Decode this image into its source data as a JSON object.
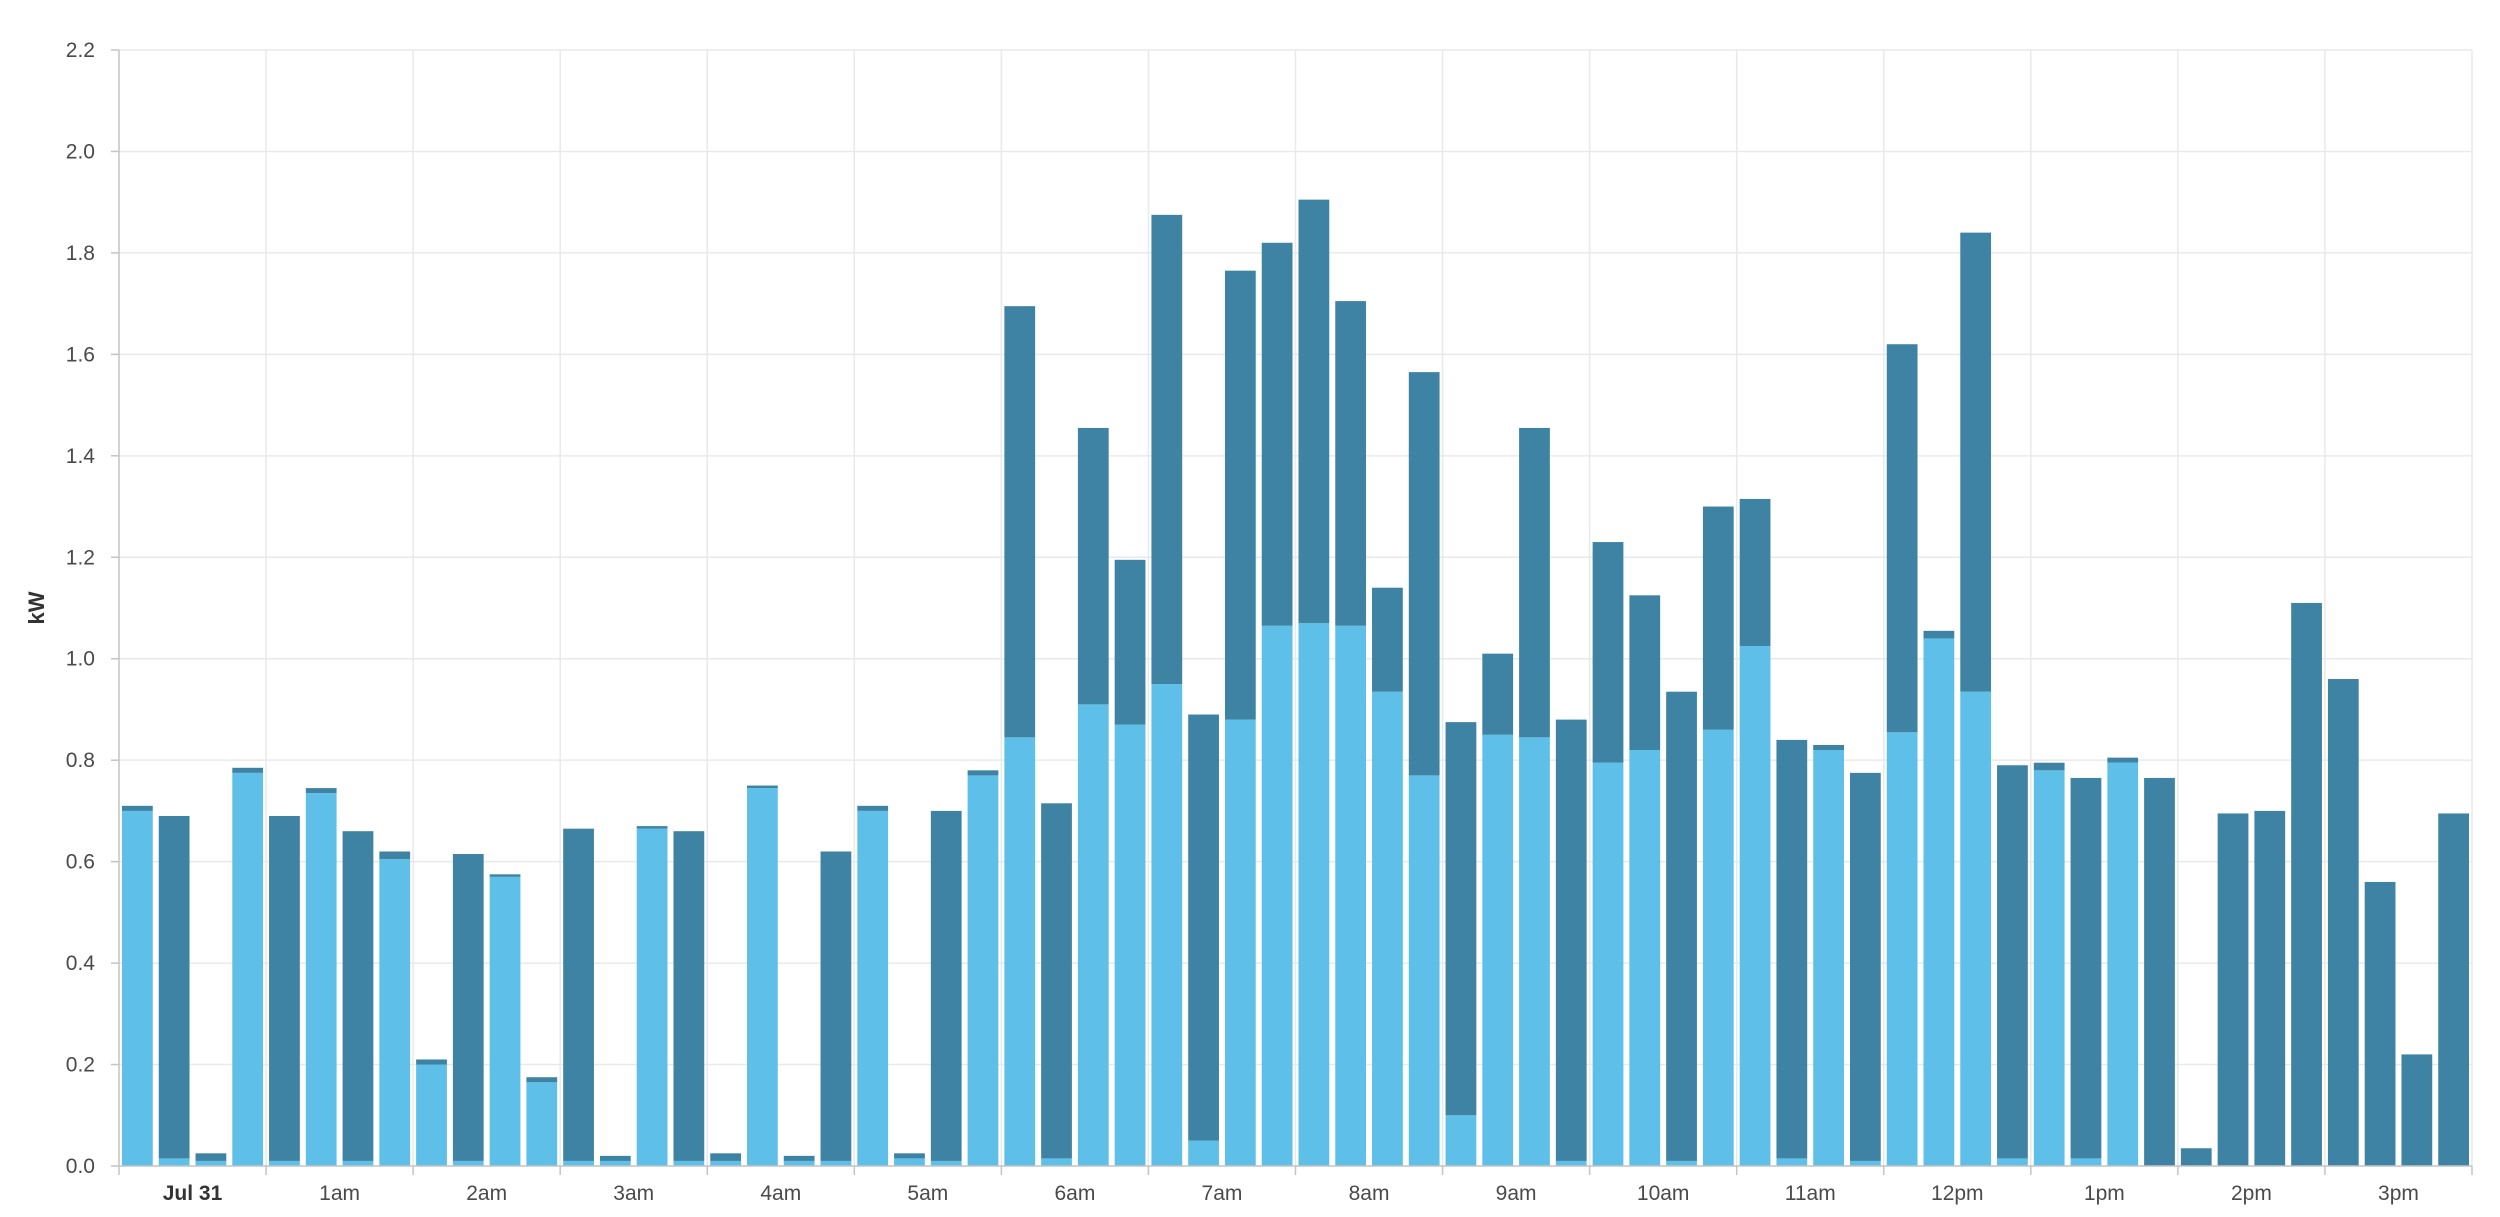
{
  "chart_data": {
    "type": "bar",
    "stacked": true,
    "ylabel": "kW",
    "xlabel": "",
    "ylim": [
      0,
      2.2
    ],
    "y_ticks": [
      "0.0",
      "0.2",
      "0.4",
      "0.6",
      "0.8",
      "1.0",
      "1.2",
      "1.4",
      "1.6",
      "1.8",
      "2.0",
      "2.2"
    ],
    "x_tick_labels": [
      "Jul 31",
      "1am",
      "2am",
      "3am",
      "4am",
      "5am",
      "6am",
      "7am",
      "8am",
      "9am",
      "10am",
      "11am",
      "12pm",
      "1pm",
      "2pm",
      "3pm"
    ],
    "grid": true,
    "legend": "none",
    "colors": {
      "series_1": "#5ec0e8",
      "series_2": "#3e83a4"
    },
    "series": [
      {
        "values": [
          0.7,
          0.015,
          0.01,
          0.775,
          0.01,
          0.735,
          0.01,
          0.605,
          0.2,
          0.01,
          0.57,
          0.165,
          0.01,
          0.01,
          0.665,
          0.01,
          0.01,
          0.745,
          0.01,
          0.01,
          0.7,
          0.015,
          0.01,
          0.77,
          0.845,
          0.015,
          0.91,
          0.87,
          0.95,
          0.05,
          0.88,
          1.065,
          1.07,
          1.065,
          0.935,
          0.77,
          0.1,
          0.85,
          0.845,
          0.01,
          0.795,
          0.82,
          0.01,
          0.86,
          1.025,
          0.015,
          0.82,
          0.01,
          0.855,
          1.04,
          0.935,
          0.015,
          0.78,
          0.015,
          0.795,
          0.0,
          0.0,
          0.0,
          0.0,
          0.0,
          0.0,
          0.0,
          0.0,
          0.0
        ]
      },
      {
        "values": [
          0.01,
          0.675,
          0.015,
          0.01,
          0.68,
          0.01,
          0.65,
          0.015,
          0.01,
          0.605,
          0.005,
          0.01,
          0.655,
          0.01,
          0.005,
          0.65,
          0.015,
          0.005,
          0.01,
          0.61,
          0.01,
          0.01,
          0.69,
          0.01,
          0.85,
          0.7,
          0.545,
          0.325,
          0.925,
          0.84,
          0.885,
          0.755,
          0.835,
          0.64,
          0.205,
          0.795,
          0.775,
          0.16,
          0.61,
          0.87,
          0.435,
          0.305,
          0.925,
          0.44,
          0.29,
          0.825,
          0.01,
          0.765,
          0.765,
          0.015,
          0.905,
          0.775,
          0.015,
          0.75,
          0.01,
          0.765,
          0.035,
          0.695,
          0.7,
          1.11,
          0.96,
          0.56,
          0.22,
          0.695
        ]
      }
    ]
  }
}
